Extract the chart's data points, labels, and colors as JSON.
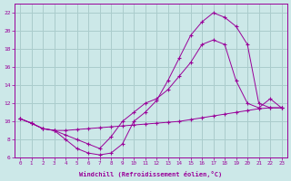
{
  "xlabel": "Windchill (Refroidissement éolien,°C)",
  "bg_color": "#cce8e8",
  "grid_color": "#aacccc",
  "line_color": "#990099",
  "xlim": [
    -0.5,
    23.5
  ],
  "ylim": [
    6,
    23
  ],
  "xticks": [
    0,
    1,
    2,
    3,
    4,
    5,
    6,
    7,
    8,
    9,
    10,
    11,
    12,
    13,
    14,
    15,
    16,
    17,
    18,
    19,
    20,
    21,
    22,
    23
  ],
  "yticks": [
    6,
    8,
    10,
    12,
    14,
    16,
    18,
    20,
    22
  ],
  "line1_x": [
    0,
    1,
    2,
    3,
    4,
    5,
    6,
    7,
    8,
    9,
    10,
    11,
    12,
    13,
    14,
    15,
    16,
    17,
    18,
    19,
    20,
    21,
    22,
    23
  ],
  "line1_y": [
    10.3,
    9.8,
    9.2,
    9.0,
    9.0,
    9.1,
    9.2,
    9.3,
    9.4,
    9.5,
    9.6,
    9.7,
    9.8,
    9.9,
    10.0,
    10.2,
    10.4,
    10.6,
    10.8,
    11.0,
    11.2,
    11.4,
    11.5,
    11.5
  ],
  "line2_x": [
    0,
    1,
    2,
    3,
    4,
    5,
    6,
    7,
    8,
    9,
    10,
    11,
    12,
    13,
    14,
    15,
    16,
    17,
    18,
    19,
    20,
    21,
    22,
    23
  ],
  "line2_y": [
    10.3,
    9.8,
    9.2,
    9.0,
    8.5,
    8.0,
    7.5,
    7.0,
    8.3,
    10.0,
    11.0,
    12.0,
    12.5,
    13.5,
    15.0,
    16.5,
    18.5,
    19.0,
    18.5,
    14.5,
    12.0,
    11.5,
    12.5,
    11.5
  ],
  "line3_x": [
    0,
    1,
    2,
    3,
    4,
    5,
    6,
    7,
    8,
    9,
    10,
    11,
    12,
    13,
    14,
    15,
    16,
    17,
    18,
    19,
    20,
    21,
    22,
    23
  ],
  "line3_y": [
    10.3,
    9.8,
    9.2,
    9.0,
    8.0,
    7.0,
    6.5,
    6.3,
    6.5,
    7.5,
    10.0,
    11.0,
    12.3,
    14.5,
    17.0,
    19.5,
    21.0,
    22.0,
    21.5,
    20.5,
    18.5,
    12.0,
    11.5,
    11.5
  ]
}
